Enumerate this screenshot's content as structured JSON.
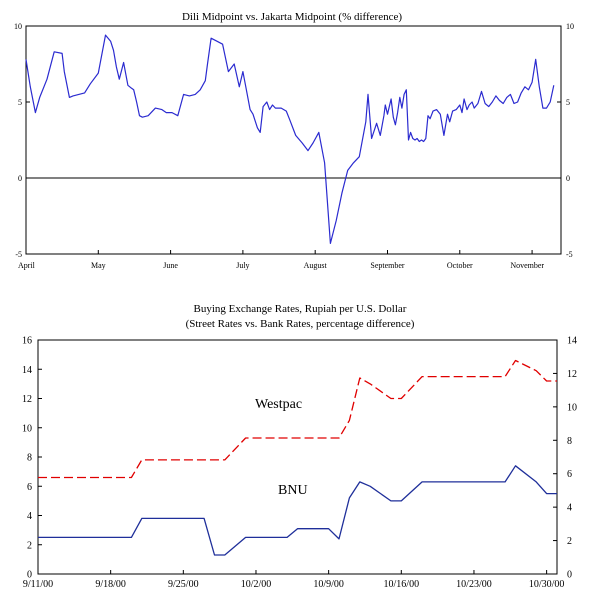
{
  "colors": {
    "series1": "#2b2bd0",
    "westpac": "#e00000",
    "bnu": "#1f2f9a",
    "axis": "#000000"
  },
  "chart_data": [
    {
      "type": "line",
      "title": "Dili Midpoint vs. Jakarta Midpoint (% difference)",
      "ylim": [
        -5,
        10
      ],
      "y_ticks": [
        "10",
        "5",
        "0",
        "-5"
      ],
      "y_ticks_right": [
        "10",
        "5",
        "0",
        "-5"
      ],
      "xlim": [
        0,
        7.4
      ],
      "x_ticks": [
        "April",
        "May",
        "June",
        "July",
        "August",
        "September",
        "October",
        "November"
      ],
      "zero_line": true,
      "series": [
        {
          "color": "#2b2bd0",
          "x": [
            0.0,
            0.06,
            0.13,
            0.19,
            0.29,
            0.39,
            0.5,
            0.53,
            0.6,
            0.65,
            0.73,
            0.81,
            0.89,
            1.0,
            1.1,
            1.17,
            1.21,
            1.25,
            1.29,
            1.35,
            1.41,
            1.46,
            1.49,
            1.53,
            1.57,
            1.61,
            1.69,
            1.79,
            1.88,
            1.94,
            2.02,
            2.1,
            2.18,
            2.26,
            2.34,
            2.41,
            2.48,
            2.51,
            2.56,
            2.64,
            2.72,
            2.8,
            2.88,
            2.95,
            3.0,
            3.04,
            3.1,
            3.14,
            3.2,
            3.24,
            3.28,
            3.33,
            3.37,
            3.41,
            3.45,
            3.53,
            3.6,
            3.65,
            3.73,
            3.82,
            3.9,
            3.97,
            4.05,
            4.13,
            4.21,
            4.29,
            4.37,
            4.45,
            4.53,
            4.61,
            4.7,
            4.73,
            4.78,
            4.85,
            4.9,
            4.95,
            4.97,
            5.0,
            5.05,
            5.08,
            5.11,
            5.14,
            5.17,
            5.2,
            5.23,
            5.26,
            5.29,
            5.32,
            5.35,
            5.38,
            5.41,
            5.44,
            5.47,
            5.5,
            5.53,
            5.56,
            5.59,
            5.63,
            5.68,
            5.73,
            5.78,
            5.83,
            5.86,
            5.9,
            5.95,
            6.0,
            6.03,
            6.06,
            6.1,
            6.13,
            6.17,
            6.2,
            6.25,
            6.3,
            6.35,
            6.4,
            6.45,
            6.5,
            6.55,
            6.6,
            6.65,
            6.7,
            6.75,
            6.8,
            6.85,
            6.9,
            6.95,
            7.0,
            7.05,
            7.1,
            7.15,
            7.2,
            7.25,
            7.3
          ],
          "y": [
            7.8,
            6.0,
            4.3,
            5.3,
            6.5,
            8.3,
            8.2,
            7.0,
            5.3,
            5.4,
            5.5,
            5.6,
            6.2,
            6.9,
            9.4,
            9.0,
            8.4,
            7.3,
            6.5,
            7.6,
            6.1,
            5.9,
            5.8,
            5.0,
            4.1,
            4.0,
            4.1,
            4.6,
            4.5,
            4.3,
            4.3,
            4.1,
            5.5,
            5.4,
            5.5,
            5.8,
            6.4,
            7.5,
            9.2,
            9.0,
            8.8,
            7.0,
            7.5,
            6.0,
            7.0,
            6.0,
            4.5,
            4.2,
            3.3,
            3.0,
            4.7,
            5.0,
            4.5,
            4.8,
            4.6,
            4.6,
            4.4,
            3.8,
            2.8,
            2.3,
            1.8,
            2.3,
            3.0,
            1.0,
            -4.3,
            -2.8,
            -1.0,
            0.5,
            1.0,
            1.4,
            3.7,
            5.5,
            2.6,
            3.6,
            2.8,
            4.1,
            4.8,
            4.2,
            5.2,
            4.0,
            3.5,
            4.3,
            5.3,
            4.6,
            5.5,
            5.8,
            2.5,
            3.0,
            2.6,
            2.5,
            2.6,
            2.4,
            2.5,
            2.4,
            2.6,
            4.1,
            3.9,
            4.4,
            4.5,
            4.2,
            2.8,
            4.2,
            3.7,
            4.4,
            4.5,
            4.8,
            4.3,
            5.2,
            4.5,
            4.8,
            5.0,
            4.6,
            4.9,
            5.7,
            4.9,
            4.7,
            5.0,
            5.4,
            5.1,
            4.9,
            5.3,
            5.5,
            4.9,
            5.0,
            5.6,
            6.0,
            5.8,
            6.3,
            7.8,
            6.0,
            4.6,
            4.6,
            5.0,
            6.1
          ]
        }
      ]
    },
    {
      "type": "line",
      "title": "Buying Exchange Rates, Rupiah per U.S. Dollar",
      "subtitle": "(Street Rates vs. Bank Rates, percentage difference)",
      "ylim": [
        0,
        16
      ],
      "y_ticks": [
        "0",
        "2",
        "4",
        "6",
        "8",
        "10",
        "12",
        "14",
        "16"
      ],
      "y_right_lim": [
        0,
        14
      ],
      "y_ticks_right": [
        "0",
        "2",
        "4",
        "6",
        "8",
        "10",
        "12",
        "14"
      ],
      "xlim": [
        0,
        50
      ],
      "x_ticks": [
        "9/11/00",
        "9/18/00",
        "9/25/00",
        "10/2/00",
        "10/9/00",
        "10/16/00",
        "10/23/00",
        "10/30/00"
      ],
      "series": [
        {
          "name": "Westpac",
          "color": "#e00000",
          "dash": true,
          "x": [
            0,
            9,
            10,
            18,
            20,
            21,
            29,
            30,
            31,
            32,
            34,
            35,
            37,
            38,
            45,
            46,
            48,
            49,
            50
          ],
          "y": [
            6.6,
            6.6,
            7.8,
            7.8,
            9.3,
            9.3,
            9.3,
            10.5,
            13.4,
            13.0,
            12.0,
            12.0,
            13.5,
            13.5,
            13.5,
            14.6,
            13.9,
            13.2,
            13.2
          ]
        },
        {
          "name": "BNU",
          "color": "#1f2f9a",
          "dash": false,
          "x": [
            0,
            9,
            10,
            16,
            17,
            18,
            20,
            24,
            25,
            28,
            29,
            30,
            31,
            32,
            34,
            35,
            37,
            38,
            45,
            46,
            48,
            49,
            50
          ],
          "y": [
            2.5,
            2.5,
            3.8,
            3.8,
            1.3,
            1.3,
            2.5,
            2.5,
            3.1,
            3.1,
            2.4,
            5.2,
            6.3,
            6.0,
            5.0,
            5.0,
            6.3,
            6.3,
            6.3,
            7.4,
            6.3,
            5.5,
            5.5
          ]
        }
      ]
    }
  ]
}
